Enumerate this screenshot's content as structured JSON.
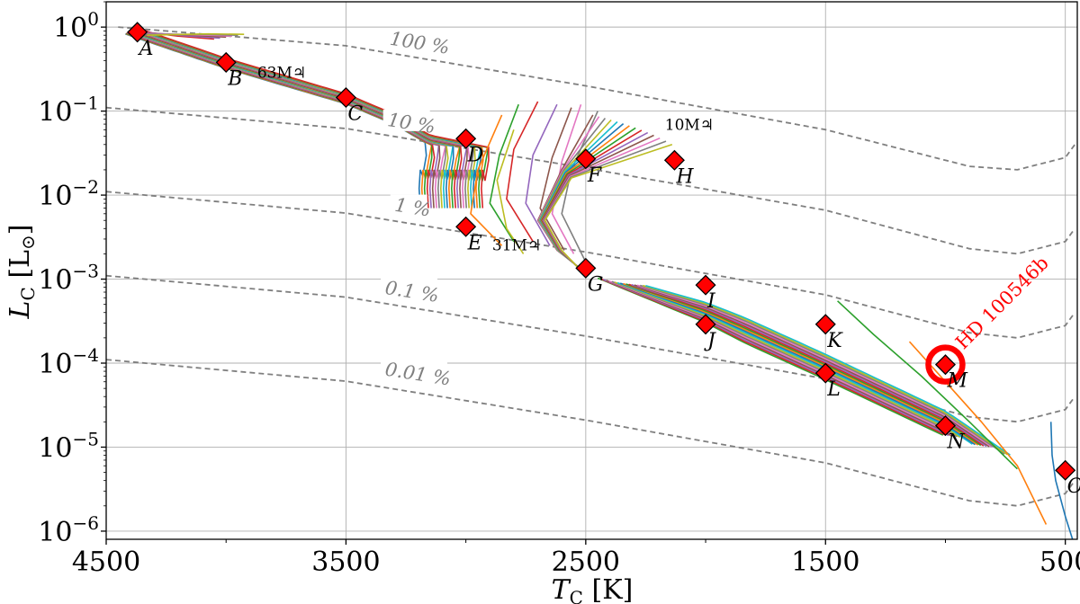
{
  "chart_data": {
    "type": "line",
    "xlabel": "T_C [K]",
    "ylabel": "L_C [L_⊙]",
    "xlim": [
      4500,
      450
    ],
    "ylim": [
      8e-07,
      2
    ],
    "yscale": "log",
    "grid": true,
    "x_ticks": [
      4500,
      3500,
      2500,
      1500,
      500
    ],
    "y_ticks": [
      {
        "value": 1,
        "base": "10",
        "exp": "0"
      },
      {
        "value": 0.1,
        "base": "10",
        "exp": "−1"
      },
      {
        "value": 0.01,
        "base": "10",
        "exp": "−2"
      },
      {
        "value": 0.001,
        "base": "10",
        "exp": "−3"
      },
      {
        "value": 0.0001,
        "base": "10",
        "exp": "−4"
      },
      {
        "value": 1e-05,
        "base": "10",
        "exp": "−5"
      },
      {
        "value": 1e-06,
        "base": "10",
        "exp": "−6"
      }
    ],
    "contours": [
      {
        "label": "100 %",
        "label_at": [
          3320,
          0.62
        ],
        "points": [
          [
            4450,
            1.0
          ],
          [
            3500,
            0.6
          ],
          [
            2500,
            0.2
          ],
          [
            1500,
            0.06
          ],
          [
            900,
            0.022
          ],
          [
            700,
            0.02
          ],
          [
            500,
            0.028
          ],
          [
            460,
            0.04
          ]
        ]
      },
      {
        "label": "10 %",
        "label_at": [
          3330,
          0.067
        ],
        "points": [
          [
            4500,
            0.11
          ],
          [
            3500,
            0.062
          ],
          [
            2500,
            0.021
          ],
          [
            1500,
            0.0066
          ],
          [
            900,
            0.0023
          ],
          [
            700,
            0.002
          ],
          [
            500,
            0.0028
          ],
          [
            460,
            0.004
          ]
        ]
      },
      {
        "label": "1 %",
        "label_at": [
          3300,
          0.0065
        ],
        "points": [
          [
            4500,
            0.011
          ],
          [
            3500,
            0.0061
          ],
          [
            2500,
            0.0021
          ],
          [
            1500,
            0.00065
          ],
          [
            900,
            0.00023
          ],
          [
            700,
            0.0002
          ],
          [
            500,
            0.00028
          ],
          [
            460,
            0.0004
          ]
        ]
      },
      {
        "label": "0.1 %",
        "label_at": [
          3340,
          0.00067
        ],
        "points": [
          [
            4500,
            0.0011
          ],
          [
            3500,
            0.00061
          ],
          [
            2500,
            0.00021
          ],
          [
            1500,
            6.5e-05
          ],
          [
            900,
            2.3e-05
          ],
          [
            700,
            2e-05
          ],
          [
            500,
            2.8e-05
          ],
          [
            460,
            4e-05
          ]
        ]
      },
      {
        "label": "0.01 %",
        "label_at": [
          3340,
          7.2e-05
        ],
        "points": [
          [
            4500,
            0.00011
          ],
          [
            3500,
            6.1e-05
          ],
          [
            2500,
            2.1e-05
          ],
          [
            1500,
            6.5e-06
          ],
          [
            900,
            2.3e-06
          ],
          [
            700,
            2e-06
          ],
          [
            500,
            2.8e-06
          ],
          [
            460,
            4e-06
          ]
        ]
      }
    ],
    "points": [
      {
        "label": "A",
        "x": 4370,
        "y": 0.87
      },
      {
        "label": "B",
        "x": 4000,
        "y": 0.38
      },
      {
        "label": "C",
        "x": 3500,
        "y": 0.145
      },
      {
        "label": "D",
        "x": 3000,
        "y": 0.047
      },
      {
        "label": "E",
        "x": 3000,
        "y": 0.0042
      },
      {
        "label": "F",
        "x": 2500,
        "y": 0.027
      },
      {
        "label": "G",
        "x": 2500,
        "y": 0.00135
      },
      {
        "label": "H",
        "x": 2130,
        "y": 0.026
      },
      {
        "label": "I",
        "x": 2000,
        "y": 0.00085
      },
      {
        "label": "J",
        "x": 2000,
        "y": 0.00029
      },
      {
        "label": "K",
        "x": 1500,
        "y": 0.00029
      },
      {
        "label": "L",
        "x": 1500,
        "y": 7.6e-05
      },
      {
        "label": "M",
        "x": 1000,
        "y": 9.6e-05
      },
      {
        "label": "N",
        "x": 1000,
        "y": 1.8e-05
      },
      {
        "label": "O",
        "x": 500,
        "y": 5.3e-06
      }
    ],
    "mass_labels": [
      {
        "text": "63M♃",
        "x": 3870,
        "y": 0.25
      },
      {
        "text": "31M♃",
        "x": 2890,
        "y": 0.0022
      },
      {
        "text": "10M♃",
        "x": 2170,
        "y": 0.06
      }
    ],
    "target": {
      "label": "HD 100546b",
      "x": 1000,
      "y": 9.6e-05
    },
    "colors": [
      "#1f77b4",
      "#ff7f0e",
      "#2ca02c",
      "#d62728",
      "#9467bd",
      "#8c564b",
      "#e377c2",
      "#7f7f7f",
      "#bcbd22",
      "#17becf"
    ]
  }
}
